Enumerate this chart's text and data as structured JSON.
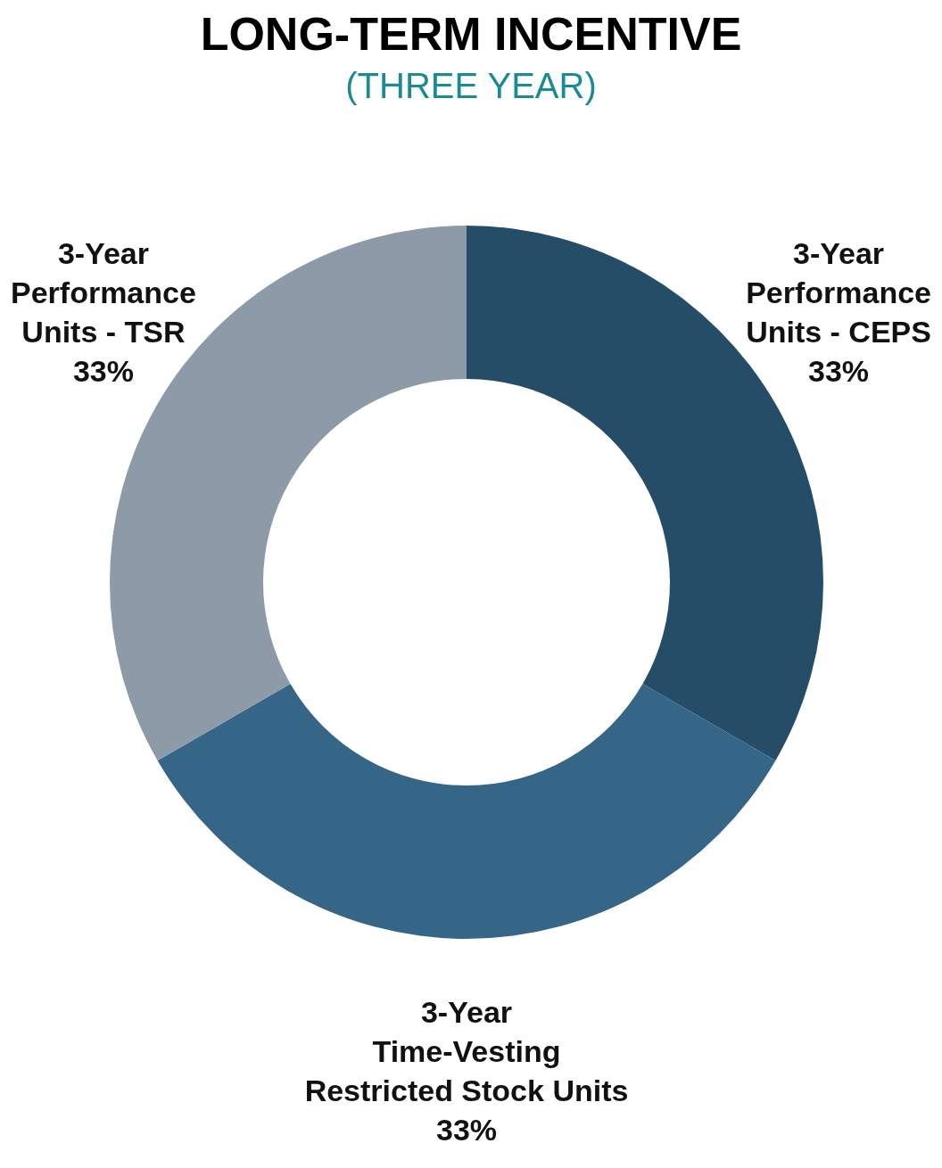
{
  "chart_data": {
    "type": "donut",
    "title": "LONG-TERM INCENTIVE",
    "subtitle": "(THREE YEAR)",
    "categories": [
      "3-Year\nPerformance\nUnits - CEPS",
      "3-Year\nTime-Vesting\nRestricted Stock Units",
      "3-Year\nPerformance\nUnits - TSR"
    ],
    "values": [
      33,
      33,
      33
    ],
    "value_labels": [
      "33%",
      "33%",
      "33%"
    ],
    "colors": [
      "#264d67",
      "#356688",
      "#8d9aa8"
    ],
    "legend": false
  }
}
